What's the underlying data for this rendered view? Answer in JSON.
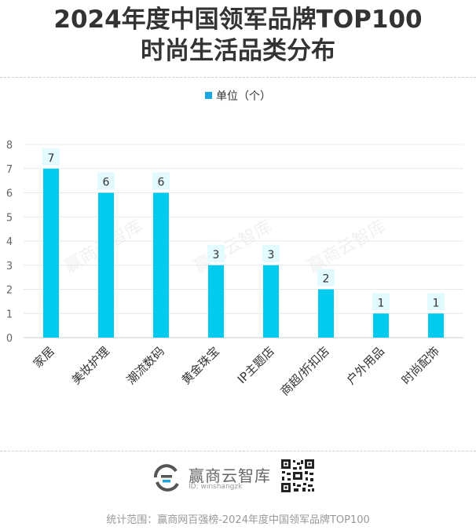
{
  "header": {
    "title_line1": "2024年度中国领军品牌TOP100",
    "title_line2": "时尚生活品类分布"
  },
  "chart_data": {
    "type": "bar",
    "categories": [
      "家居",
      "美妆护理",
      "潮流数码",
      "黄金珠宝",
      "IP主题店",
      "商超/折扣店",
      "户外用品",
      "时尚配饰"
    ],
    "series": [
      {
        "name": "单位（个）",
        "values": [
          7,
          6,
          6,
          3,
          3,
          2,
          1,
          1
        ]
      }
    ],
    "y_ticks": [
      "0",
      "1",
      "2",
      "3",
      "4",
      "5",
      "6",
      "7",
      "8"
    ],
    "ylim": [
      0,
      8
    ],
    "grid": true,
    "legend": "top-center",
    "bar_color": "#00cbef",
    "label_bg": "#e3faff",
    "axis_color": "#666666"
  },
  "watermark": "赢商云智库",
  "footer": {
    "brand": "赢商云智库",
    "brand_id": "ID: winshangzk",
    "source": "统计范围：赢商网百强榜-2024年度中国领军品牌TOP100"
  }
}
